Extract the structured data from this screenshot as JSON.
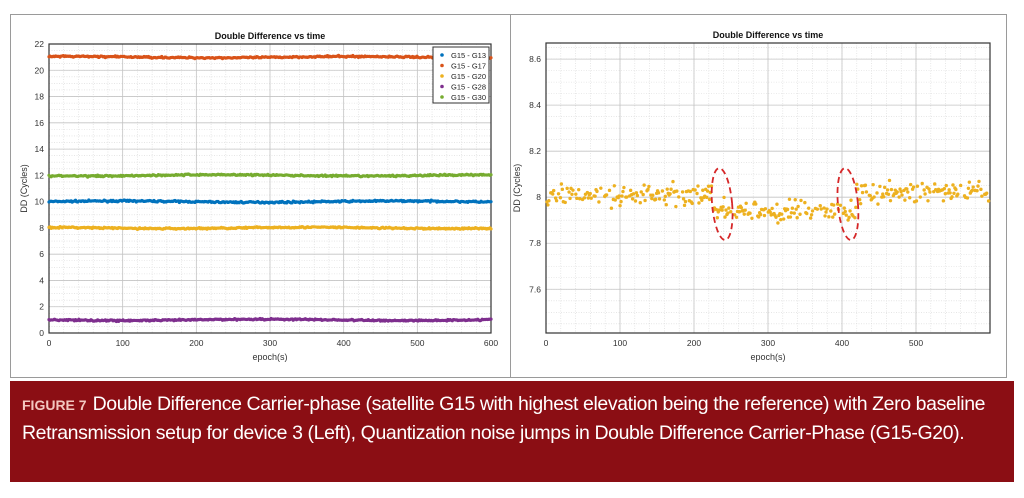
{
  "chart_data": [
    {
      "type": "scatter",
      "title": "Double Difference vs time",
      "xlabel": "epoch(s)",
      "ylabel": "DD (Cycles)",
      "xlim": [
        0,
        600
      ],
      "ylim": [
        0,
        22
      ],
      "xticks": [
        0,
        100,
        200,
        300,
        400,
        500,
        600
      ],
      "yticks": [
        0,
        2,
        4,
        6,
        8,
        10,
        12,
        14,
        16,
        18,
        20,
        22
      ],
      "grid": true,
      "minor_grid": true,
      "legend_placement": "top-right",
      "series": [
        {
          "name": "G15 - G13",
          "color": "#0072bd",
          "mean": 10
        },
        {
          "name": "G15 - G17",
          "color": "#d95319",
          "mean": 21
        },
        {
          "name": "G15 - G20",
          "color": "#edb120",
          "mean": 8
        },
        {
          "name": "G15 - G28",
          "color": "#7e2f8e",
          "mean": 1
        },
        {
          "name": "G15 - G30",
          "color": "#77ac30",
          "mean": 12
        }
      ]
    },
    {
      "type": "scatter",
      "title": "Double Difference vs time",
      "xlabel": "epoch(s)",
      "ylabel": "DD (Cycles)",
      "xlim": [
        0,
        600
      ],
      "ylim": [
        7.41,
        8.67
      ],
      "xticks": [
        0,
        100,
        200,
        300,
        400,
        500
      ],
      "yticks": [
        7.6,
        7.8,
        8,
        8.2,
        8.4,
        8.6
      ],
      "grid": true,
      "minor_grid": true,
      "color": "#edb120",
      "segments": [
        {
          "from": 0,
          "to": 225,
          "mean": 8.01
        },
        {
          "from": 225,
          "to": 420,
          "mean": 7.94
        },
        {
          "from": 420,
          "to": 599,
          "mean": 8.02
        }
      ],
      "annotations": [
        {
          "type": "dashed-ellipse",
          "x": 238,
          "y": 7.97,
          "color": "#d62728"
        },
        {
          "type": "dashed-ellipse",
          "x": 408,
          "y": 7.97,
          "color": "#d62728"
        }
      ]
    }
  ],
  "caption": {
    "label": "FIGURE 7",
    "text": "Double Difference Carrier-phase (satellite G15 with highest elevation being the reference) with Zero baseline Retransmission setup for device 3 (Left), Quantization noise jumps in Double Difference Carrier-Phase (G15-G20)."
  }
}
